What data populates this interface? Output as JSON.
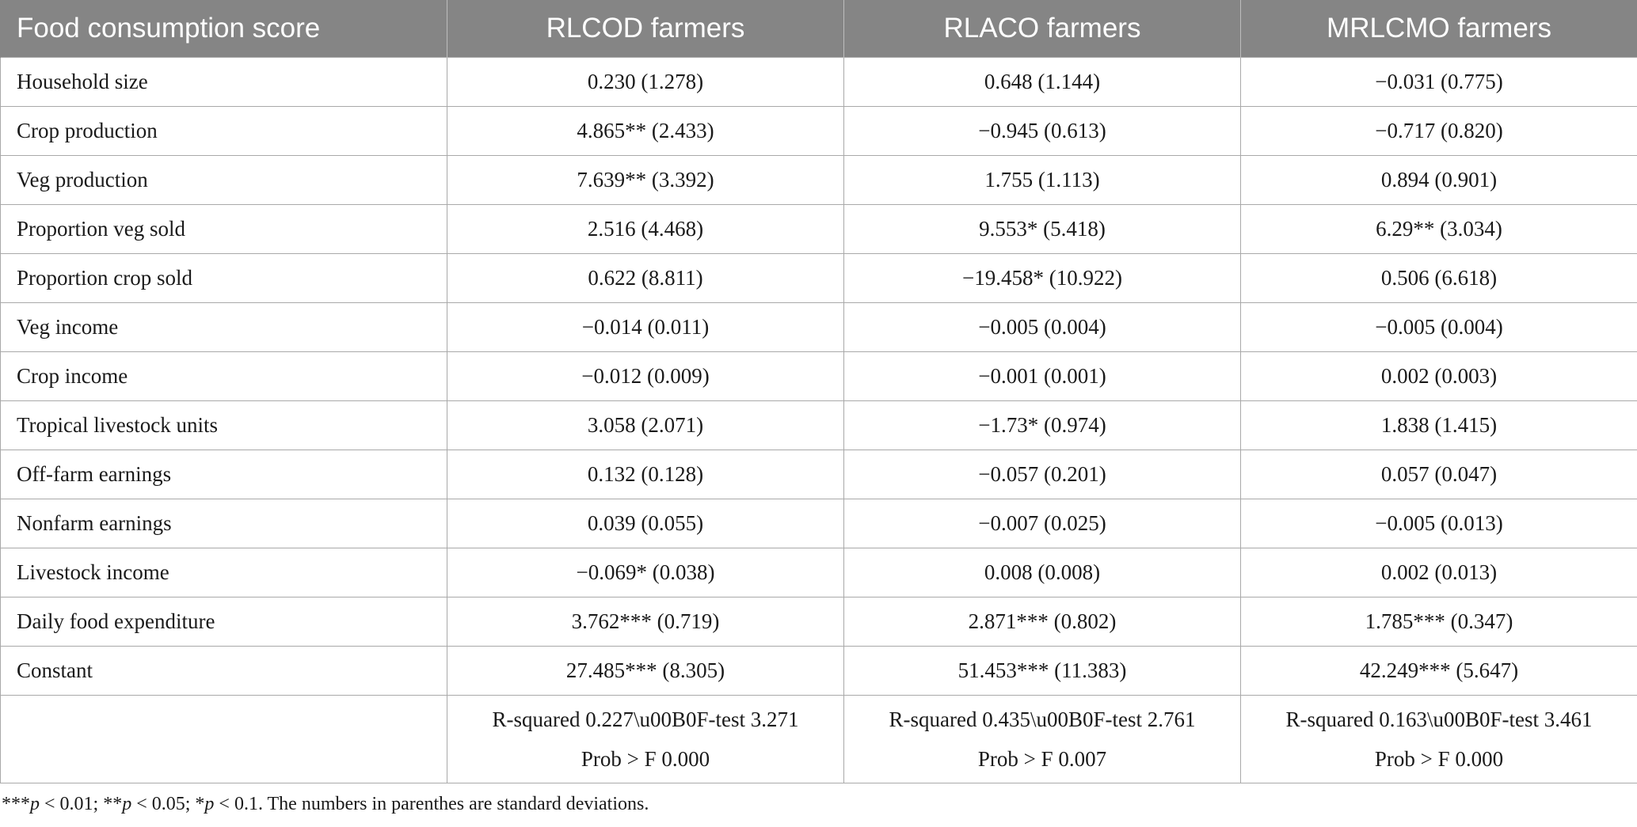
{
  "table": {
    "headers": [
      "Food consumption score",
      "RLCOD farmers",
      "RLACO farmers",
      "MRLCMO farmers"
    ],
    "rows": [
      {
        "label": "Household size",
        "values": [
          "0.230 (1.278)",
          "0.648 (1.144)",
          "−0.031 (0.775)"
        ]
      },
      {
        "label": "Crop production",
        "values": [
          "4.865** (2.433)",
          "−0.945 (0.613)",
          "−0.717 (0.820)"
        ]
      },
      {
        "label": "Veg production",
        "values": [
          "7.639** (3.392)",
          "1.755 (1.113)",
          "0.894 (0.901)"
        ]
      },
      {
        "label": "Proportion veg sold",
        "values": [
          "2.516 (4.468)",
          "9.553* (5.418)",
          "6.29** (3.034)"
        ]
      },
      {
        "label": "Proportion crop sold",
        "values": [
          "0.622 (8.811)",
          "−19.458* (10.922)",
          "0.506 (6.618)"
        ]
      },
      {
        "label": "Veg income",
        "values": [
          "−0.014 (0.011)",
          "−0.005 (0.004)",
          "−0.005 (0.004)"
        ]
      },
      {
        "label": "Crop income",
        "values": [
          "−0.012 (0.009)",
          "−0.001 (0.001)",
          "0.002 (0.003)"
        ]
      },
      {
        "label": "Tropical livestock units",
        "values": [
          "3.058 (2.071)",
          "−1.73* (0.974)",
          "1.838 (1.415)"
        ]
      },
      {
        "label": "Off-farm earnings",
        "values": [
          "0.132 (0.128)",
          "−0.057 (0.201)",
          "0.057 (0.047)"
        ]
      },
      {
        "label": "Nonfarm earnings",
        "values": [
          "0.039 (0.055)",
          "−0.007 (0.025)",
          "−0.005 (0.013)"
        ]
      },
      {
        "label": "Livestock income",
        "values": [
          "−0.069* (0.038)",
          "0.008 (0.008)",
          "0.002 (0.013)"
        ]
      },
      {
        "label": "Daily food expenditure",
        "values": [
          "3.762*** (0.719)",
          "2.871*** (0.802)",
          "1.785*** (0.347)"
        ]
      },
      {
        "label": "Constant",
        "values": [
          "27.485*** (8.305)",
          "51.453*** (11.383)",
          "42.249*** (5.647)"
        ]
      }
    ],
    "stats": [
      {
        "line1": "R-squared 0.227\\u00B0F-test 3.271",
        "line2": "Prob > F 0.000"
      },
      {
        "line1": "R-squared 0.435\\u00B0F-test 2.761",
        "line2": "Prob > F 0.007"
      },
      {
        "line1": "R-squared 0.163\\u00B0F-test 3.461",
        "line2": "Prob > F 0.000"
      }
    ]
  },
  "footnote": {
    "s1": "***",
    "p1": "p",
    "t1": " < 0.01; **",
    "p2": "p",
    "t2": " < 0.05; *",
    "p3": "p",
    "t3": " < 0.1. The numbers in parenthes are standard deviations."
  }
}
